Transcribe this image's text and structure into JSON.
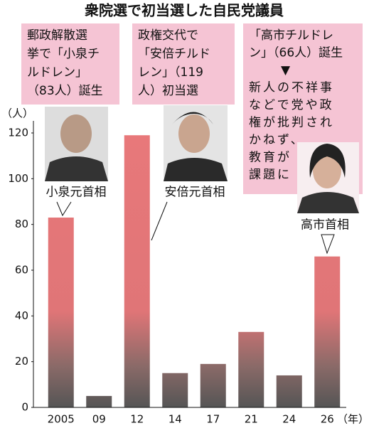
{
  "chart_data": {
    "type": "bar",
    "title": "衆院選で初当選した自民党議員",
    "y_axis_label": "（人）",
    "x_axis_label": "（年）",
    "categories": [
      "2005",
      "09",
      "12",
      "14",
      "17",
      "21",
      "24",
      "26"
    ],
    "values": [
      83,
      5,
      119,
      15,
      19,
      33,
      14,
      66
    ],
    "color": "#e8787a",
    "ylim": [
      0,
      120
    ],
    "yticks": [
      0,
      20,
      40,
      60,
      80,
      100,
      120
    ],
    "annotations": [
      {
        "lines": [
          "郵政解散選",
          "挙で「小泉チ",
          "ルドレン」",
          "（83人）誕生"
        ],
        "person": "小泉元首相"
      },
      {
        "lines": [
          "政権交代で",
          "「安倍チルド",
          "レン」（119",
          "人）初当選"
        ],
        "person": "安倍元首相"
      },
      {
        "lines": [
          "「高市チルドレ",
          "ン」（66人）誕生",
          "▼",
          "新人の不祥事",
          "などで党や政",
          "権が批判され",
          "かねず、",
          "教育が",
          "課題に"
        ],
        "person": "高市首相"
      }
    ]
  }
}
